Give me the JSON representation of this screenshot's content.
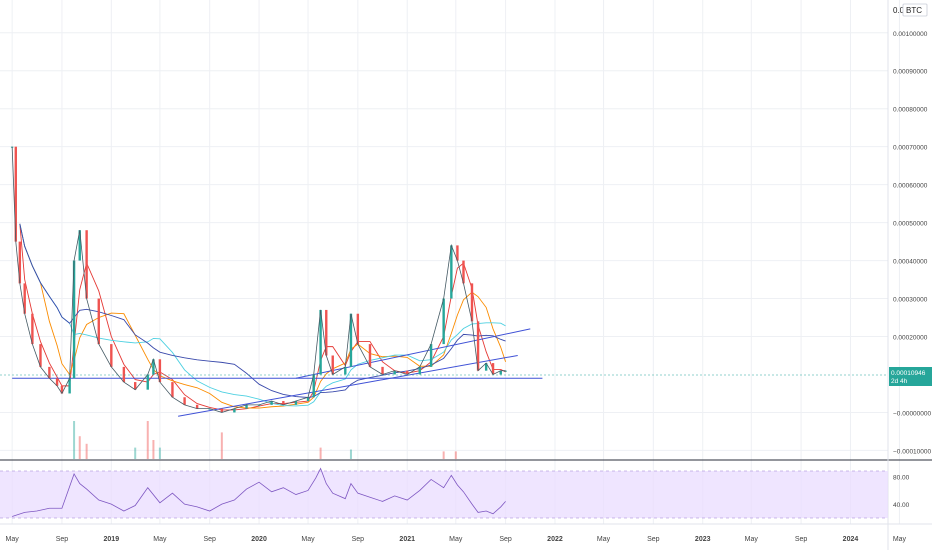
{
  "header": {
    "currency_prefix": "0.0",
    "currency": "BTC"
  },
  "price_axis": {
    "ticks": [
      {
        "label": "0.00100000",
        "value": 0.001
      },
      {
        "label": "0.00090000",
        "value": 0.0009
      },
      {
        "label": "0.00080000",
        "value": 0.0008
      },
      {
        "label": "0.00070000",
        "value": 0.0007
      },
      {
        "label": "0.00060000",
        "value": 0.0006
      },
      {
        "label": "0.00050000",
        "value": 0.0005
      },
      {
        "label": "0.00040000",
        "value": 0.0004
      },
      {
        "label": "0.00030000",
        "value": 0.0003
      },
      {
        "label": "0.00020000",
        "value": 0.0002
      },
      {
        "label": "−0.00000000",
        "value": 0.0
      },
      {
        "label": "−0.00010000",
        "value": -0.0001
      }
    ],
    "range": [
      -0.00012,
      0.00108
    ],
    "last_price": "0.00010946",
    "countdown": "2d 4h",
    "price_tag_color": "#26a69a"
  },
  "time_axis": {
    "labels": [
      "May",
      "Sep",
      "2019",
      "May",
      "Sep",
      "2020",
      "May",
      "Sep",
      "2021",
      "May",
      "Sep",
      "2022",
      "May",
      "Sep",
      "2023",
      "May",
      "Sep",
      "2024",
      "May"
    ]
  },
  "rsi": {
    "ticks": [
      "80.00",
      "40.00"
    ],
    "band_upper": 70,
    "band_lower": 30,
    "range": [
      14,
      100
    ],
    "band_color": "#e9dcff",
    "line_color": "#7e57c2"
  },
  "colors": {
    "up": "#26a69a",
    "down": "#ef5350",
    "trendline": "#3f51d6",
    "ma_fast": "#e53935",
    "ma_mid": "#fb8c00",
    "ma_slow": "#4dd0e1",
    "ma_long": "#3949ab",
    "grid": "#eef0f4"
  },
  "chart_data": {
    "type": "line",
    "title": "",
    "xlabel": "",
    "ylabel": "BTC",
    "ylim": [
      -0.0001,
      0.00105
    ],
    "x_range": [
      "2018-04",
      "2024-06"
    ],
    "series": [
      {
        "values": [
          [
            "2018-05-01",
            0.0007
          ],
          [
            "2018-05-10",
            0.00045
          ],
          [
            "2018-05-20",
            0.00034
          ],
          [
            "2018-06-01",
            0.00026
          ],
          [
            "2018-06-20",
            0.00018
          ],
          [
            "2018-07-10",
            0.00012
          ],
          [
            "2018-08-01",
            9e-05
          ],
          [
            "2018-08-20",
            7e-05
          ],
          [
            "2018-09-01",
            5e-05
          ],
          [
            "2018-09-20",
            9e-05
          ],
          [
            "2018-10-01",
            0.0004
          ],
          [
            "2018-10-15",
            0.00048
          ],
          [
            "2018-11-01",
            0.0003
          ],
          [
            "2018-12-01",
            0.00018
          ],
          [
            "2019-01-01",
            0.00012
          ],
          [
            "2019-02-01",
            8e-05
          ],
          [
            "2019-03-01",
            6e-05
          ],
          [
            "2019-04-01",
            0.0001
          ],
          [
            "2019-04-15",
            0.00014
          ],
          [
            "2019-05-01",
            8e-05
          ],
          [
            "2019-06-01",
            4e-05
          ],
          [
            "2019-07-01",
            2e-05
          ],
          [
            "2019-08-01",
            1e-05
          ],
          [
            "2019-09-01",
            1e-05
          ],
          [
            "2019-10-01",
            0.0
          ],
          [
            "2019-11-01",
            1e-05
          ],
          [
            "2019-12-01",
            2e-05
          ],
          [
            "2020-01-01",
            2e-05
          ],
          [
            "2020-02-01",
            3e-05
          ],
          [
            "2020-03-01",
            2e-05
          ],
          [
            "2020-04-01",
            3e-05
          ],
          [
            "2020-05-01",
            4e-05
          ],
          [
            "2020-05-15",
            0.0001
          ],
          [
            "2020-06-01",
            0.00027
          ],
          [
            "2020-06-15",
            0.00015
          ],
          [
            "2020-07-01",
            0.0001
          ],
          [
            "2020-08-01",
            0.00012
          ],
          [
            "2020-08-15",
            0.00026
          ],
          [
            "2020-09-01",
            0.00018
          ],
          [
            "2020-10-01",
            0.00012
          ],
          [
            "2020-11-01",
            0.0001
          ],
          [
            "2020-12-01",
            0.00011
          ],
          [
            "2021-01-01",
            0.0001
          ],
          [
            "2021-02-01",
            0.00012
          ],
          [
            "2021-03-01",
            0.00018
          ],
          [
            "2021-04-01",
            0.0003
          ],
          [
            "2021-04-20",
            0.00044
          ],
          [
            "2021-05-05",
            0.0004
          ],
          [
            "2021-05-20",
            0.00034
          ],
          [
            "2021-06-10",
            0.00024
          ],
          [
            "2021-06-25",
            0.00011
          ],
          [
            "2021-07-15",
            0.00013
          ],
          [
            "2021-08-01",
            0.0001
          ],
          [
            "2021-08-20",
            0.00011
          ],
          [
            "2021-09-01",
            0.00011
          ]
        ]
      }
    ],
    "rsi_values": [
      [
        "2018-05-01",
        22
      ],
      [
        "2018-06-01",
        28
      ],
      [
        "2018-07-01",
        30
      ],
      [
        "2018-08-01",
        34
      ],
      [
        "2018-09-01",
        34
      ],
      [
        "2018-10-01",
        84
      ],
      [
        "2018-10-15",
        70
      ],
      [
        "2018-11-01",
        62
      ],
      [
        "2018-12-01",
        46
      ],
      [
        "2019-01-01",
        40
      ],
      [
        "2019-02-01",
        30
      ],
      [
        "2019-03-01",
        38
      ],
      [
        "2019-04-01",
        64
      ],
      [
        "2019-05-01",
        42
      ],
      [
        "2019-06-01",
        56
      ],
      [
        "2019-07-01",
        40
      ],
      [
        "2019-08-01",
        36
      ],
      [
        "2019-09-01",
        30
      ],
      [
        "2019-10-01",
        40
      ],
      [
        "2019-11-01",
        46
      ],
      [
        "2019-12-01",
        62
      ],
      [
        "2020-01-01",
        72
      ],
      [
        "2020-02-01",
        58
      ],
      [
        "2020-03-01",
        64
      ],
      [
        "2020-04-01",
        54
      ],
      [
        "2020-05-01",
        60
      ],
      [
        "2020-05-20",
        78
      ],
      [
        "2020-06-01",
        92
      ],
      [
        "2020-06-15",
        70
      ],
      [
        "2020-07-01",
        56
      ],
      [
        "2020-08-01",
        48
      ],
      [
        "2020-08-15",
        70
      ],
      [
        "2020-09-01",
        56
      ],
      [
        "2020-10-01",
        50
      ],
      [
        "2020-11-01",
        44
      ],
      [
        "2020-12-01",
        52
      ],
      [
        "2021-01-01",
        46
      ],
      [
        "2021-02-01",
        60
      ],
      [
        "2021-03-01",
        76
      ],
      [
        "2021-04-01",
        64
      ],
      [
        "2021-04-20",
        82
      ],
      [
        "2021-05-05",
        68
      ],
      [
        "2021-05-20",
        58
      ],
      [
        "2021-06-10",
        40
      ],
      [
        "2021-06-25",
        28
      ],
      [
        "2021-07-15",
        30
      ],
      [
        "2021-08-01",
        26
      ],
      [
        "2021-08-20",
        36
      ],
      [
        "2021-09-01",
        44
      ]
    ],
    "volume_values": [
      [
        "2018-10-01",
        1.0
      ],
      [
        "2018-10-15",
        0.6
      ],
      [
        "2018-11-01",
        0.4
      ],
      [
        "2019-03-01",
        0.3
      ],
      [
        "2019-04-01",
        1.0
      ],
      [
        "2019-04-15",
        0.5
      ],
      [
        "2019-05-01",
        0.3
      ],
      [
        "2019-10-01",
        0.7
      ],
      [
        "2020-06-01",
        0.3
      ],
      [
        "2020-08-15",
        0.25
      ],
      [
        "2021-04-01",
        0.2
      ],
      [
        "2021-05-01",
        0.2
      ]
    ],
    "trendlines": [
      {
        "from": [
          "2018-05-01",
          9e-05
        ],
        "to": [
          "2021-12-01",
          9e-05
        ]
      },
      {
        "from": [
          "2019-06-15",
          -1e-05
        ],
        "to": [
          "2021-10-01",
          0.00015
        ]
      },
      {
        "from": [
          "2020-04-01",
          9e-05
        ],
        "to": [
          "2021-11-01",
          0.00022
        ]
      }
    ]
  }
}
